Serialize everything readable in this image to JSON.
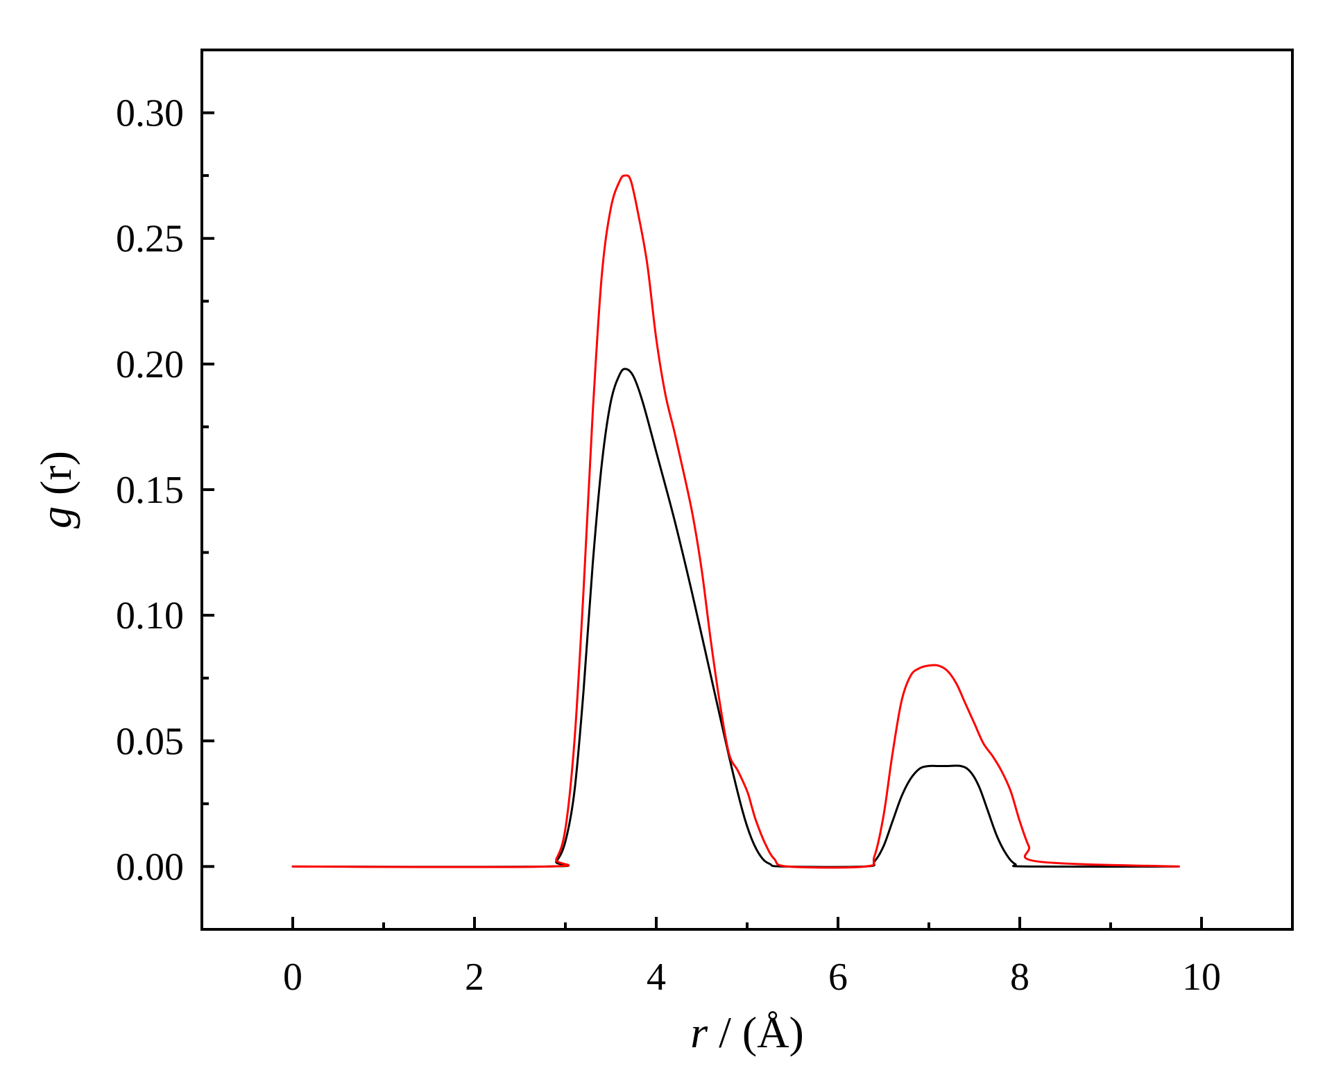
{
  "chart_data": {
    "type": "line",
    "xlabel": {
      "italic": "r",
      "rest": " / (Å)"
    },
    "ylabel": {
      "italic": "g",
      "rest": " (r)"
    },
    "xlim": [
      -1,
      11
    ],
    "ylim": [
      -0.025,
      0.325
    ],
    "xticks": [
      0,
      2,
      4,
      6,
      8,
      10
    ],
    "xtick_labels": [
      "0",
      "2",
      "4",
      "6",
      "8",
      "10"
    ],
    "xminor_ticks": [
      1,
      3,
      5,
      7,
      9
    ],
    "yticks": [
      0.0,
      0.05,
      0.1,
      0.15,
      0.2,
      0.25,
      0.3
    ],
    "ytick_labels": [
      "0.00",
      "0.05",
      "0.10",
      "0.15",
      "0.20",
      "0.25",
      "0.30"
    ],
    "yminor_ticks": [
      0.025,
      0.075,
      0.125,
      0.175,
      0.225,
      0.275
    ],
    "grid": false,
    "legend": "none",
    "series": [
      {
        "color": "#000000",
        "x": [
          0,
          2.8,
          2.9,
          3.0,
          3.1,
          3.2,
          3.3,
          3.4,
          3.5,
          3.6,
          3.67,
          3.75,
          3.85,
          4.0,
          4.2,
          4.4,
          4.6,
          4.8,
          4.95,
          5.05,
          5.15,
          5.25,
          5.4,
          6.3,
          6.4,
          6.5,
          6.6,
          6.7,
          6.8,
          6.9,
          7.0,
          7.1,
          7.2,
          7.35,
          7.45,
          7.55,
          7.65,
          7.75,
          7.85,
          7.95,
          8.1,
          9.75
        ],
        "y": [
          0,
          0,
          0.002,
          0.01,
          0.03,
          0.07,
          0.12,
          0.16,
          0.185,
          0.196,
          0.198,
          0.195,
          0.185,
          0.165,
          0.138,
          0.108,
          0.076,
          0.044,
          0.022,
          0.011,
          0.004,
          0.001,
          0,
          0,
          0.002,
          0.008,
          0.018,
          0.028,
          0.035,
          0.039,
          0.04,
          0.04,
          0.04,
          0.04,
          0.038,
          0.032,
          0.022,
          0.012,
          0.005,
          0.001,
          0,
          0
        ]
      },
      {
        "color": "#ff0000",
        "x": [
          0,
          2.8,
          2.9,
          3.0,
          3.1,
          3.2,
          3.3,
          3.4,
          3.5,
          3.6,
          3.66,
          3.72,
          3.8,
          3.9,
          4.0,
          4.1,
          4.2,
          4.3,
          4.4,
          4.5,
          4.6,
          4.7,
          4.8,
          4.9,
          5.0,
          5.05,
          5.1,
          5.2,
          5.3,
          5.45,
          6.3,
          6.4,
          6.5,
          6.6,
          6.7,
          6.8,
          6.9,
          7.0,
          7.1,
          7.2,
          7.3,
          7.4,
          7.5,
          7.6,
          7.7,
          7.8,
          7.9,
          8.0,
          8.1,
          8.2,
          9.75
        ],
        "y": [
          0,
          0,
          0.003,
          0.015,
          0.05,
          0.11,
          0.18,
          0.235,
          0.262,
          0.273,
          0.275,
          0.273,
          0.26,
          0.24,
          0.21,
          0.188,
          0.173,
          0.157,
          0.14,
          0.118,
          0.09,
          0.065,
          0.045,
          0.038,
          0.03,
          0.024,
          0.018,
          0.009,
          0.003,
          0,
          0,
          0.004,
          0.02,
          0.045,
          0.066,
          0.076,
          0.079,
          0.08,
          0.08,
          0.078,
          0.073,
          0.065,
          0.057,
          0.049,
          0.044,
          0.038,
          0.03,
          0.018,
          0.008,
          0.002,
          0
        ]
      }
    ]
  }
}
